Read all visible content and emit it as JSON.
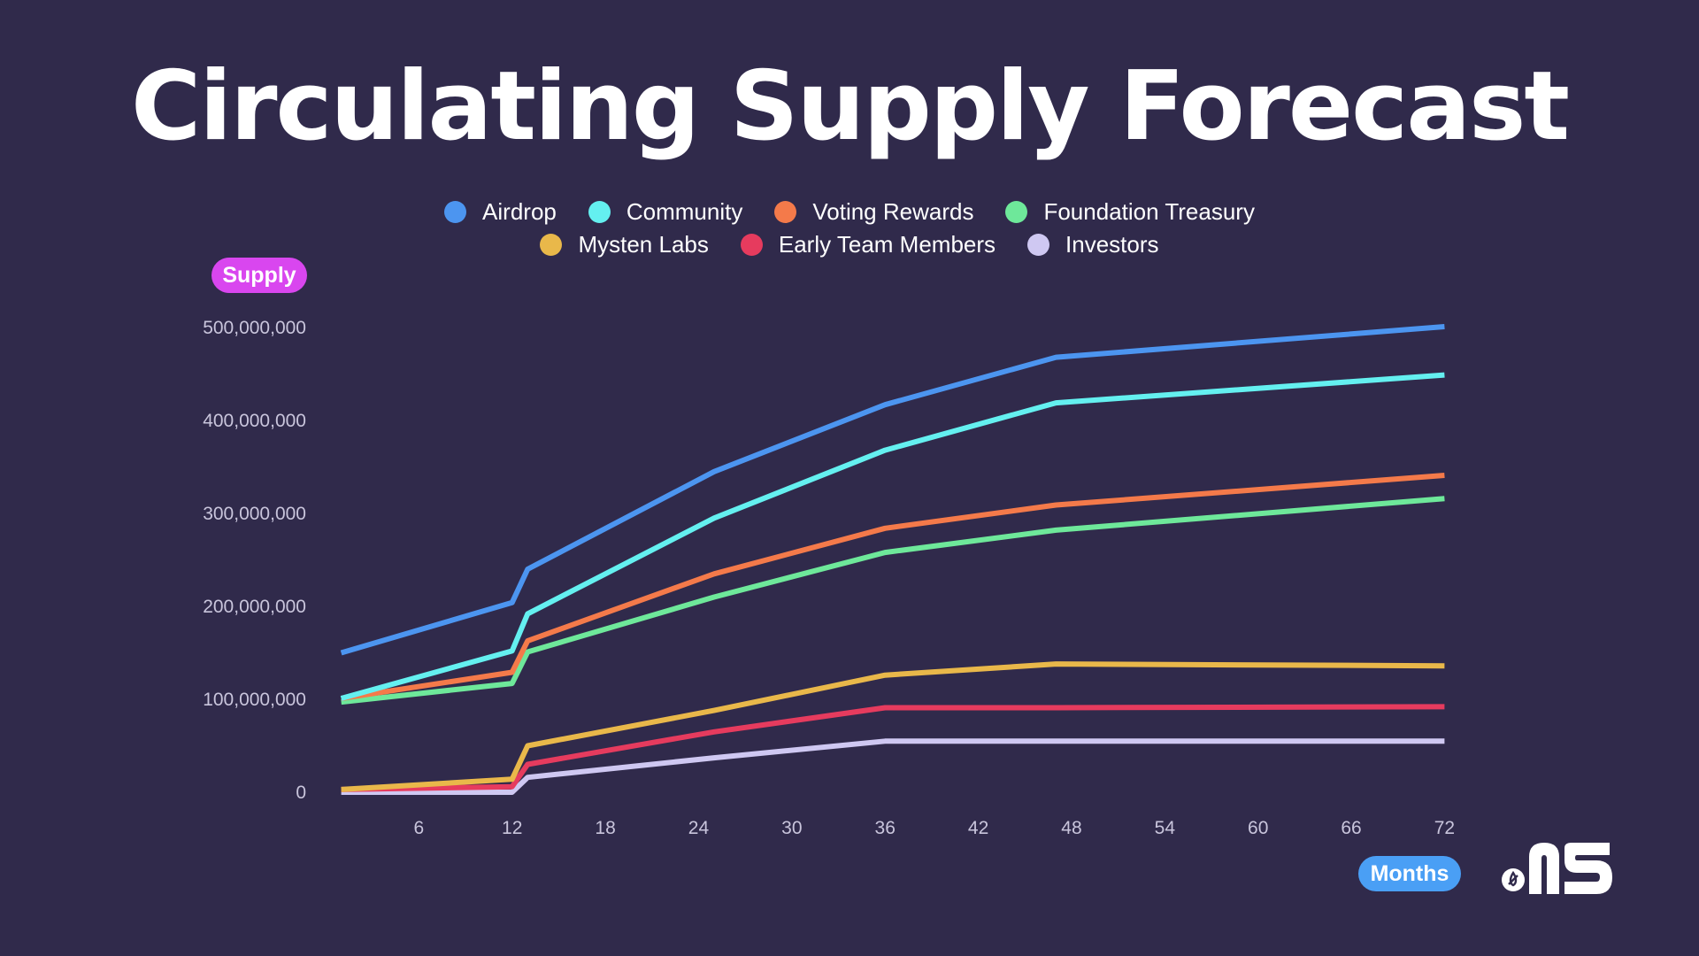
{
  "chart_data": {
    "type": "line",
    "title": "Circulating Supply Forecast",
    "xlabel": "Months",
    "ylabel": "Supply",
    "xlim": [
      0,
      73
    ],
    "ylim": [
      0,
      500000000
    ],
    "x_ticks": [
      6,
      12,
      18,
      24,
      30,
      36,
      42,
      48,
      54,
      60,
      66,
      72
    ],
    "y_ticks": [
      0,
      100000000,
      200000000,
      300000000,
      400000000,
      500000000
    ],
    "y_tick_labels": [
      "0",
      "100,000,000",
      "200,000,000",
      "300,000,000",
      "400,000,000",
      "500,000,000"
    ],
    "x": [
      1,
      12,
      13,
      25,
      36,
      47,
      72
    ],
    "legend_position": "top-center",
    "series": [
      {
        "name": "Airdrop",
        "color": "#4c95f0",
        "values": [
          150000000,
          204000000,
          240000000,
          345000000,
          417000000,
          468000000,
          501000000
        ]
      },
      {
        "name": "Community",
        "color": "#64f0f0",
        "values": [
          101000000,
          152000000,
          192000000,
          295000000,
          368000000,
          419000000,
          449000000
        ]
      },
      {
        "name": "Voting Rewards",
        "color": "#f47a4a",
        "values": [
          101000000,
          129000000,
          163000000,
          235000000,
          284000000,
          309000000,
          341000000
        ]
      },
      {
        "name": "Foundation Treasury",
        "color": "#6ee89a",
        "values": [
          97000000,
          117000000,
          151000000,
          210000000,
          258000000,
          282000000,
          316000000
        ]
      },
      {
        "name": "Mysten Labs",
        "color": "#e9b84a",
        "values": [
          3000000,
          14000000,
          50000000,
          88000000,
          126000000,
          138000000,
          136000000
        ]
      },
      {
        "name": "Early Team Members",
        "color": "#e63b5e",
        "values": [
          3000000,
          6000000,
          30000000,
          65000000,
          91000000,
          91000000,
          92000000
        ]
      },
      {
        "name": "Investors",
        "color": "#cfc8f2",
        "values": [
          0,
          0,
          16000000,
          37000000,
          55000000,
          55000000,
          55000000
        ]
      }
    ]
  },
  "labels": {
    "supply": "Supply",
    "months": "Months"
  },
  "logo": {
    "text": ".NS"
  }
}
